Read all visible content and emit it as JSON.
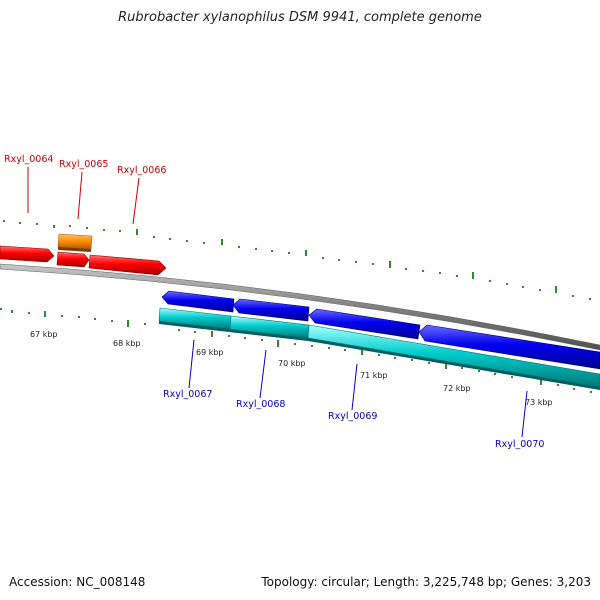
{
  "title": "Rubrobacter xylanophilus DSM 9941, complete genome",
  "footer": {
    "accession": "Accession: NC_008148",
    "stats": "Topology: circular; Length: 3,225,748 bp; Genes: 3,203"
  },
  "kbp_labels": [
    "67 kbp",
    "68 kbp",
    "69 kbp",
    "70 kbp",
    "71 kbp",
    "72 kbp",
    "73 kbp"
  ],
  "genes_upper": [
    "Rxyl_0064",
    "Rxyl_0065",
    "Rxyl_0066"
  ],
  "genes_lower": [
    "Rxyl_0067",
    "Rxyl_0068",
    "Rxyl_0069",
    "Rxyl_0070"
  ],
  "colors": {
    "forward_cds": "#ff0000",
    "forward_gene": "#ff8c00",
    "reverse_cds": "#0000ee",
    "reverse_gene": "#00cccc",
    "upper_label": "#cc0000",
    "lower_label": "#0000cc",
    "tick": "#2e8b2e",
    "backbone": "#808080"
  }
}
